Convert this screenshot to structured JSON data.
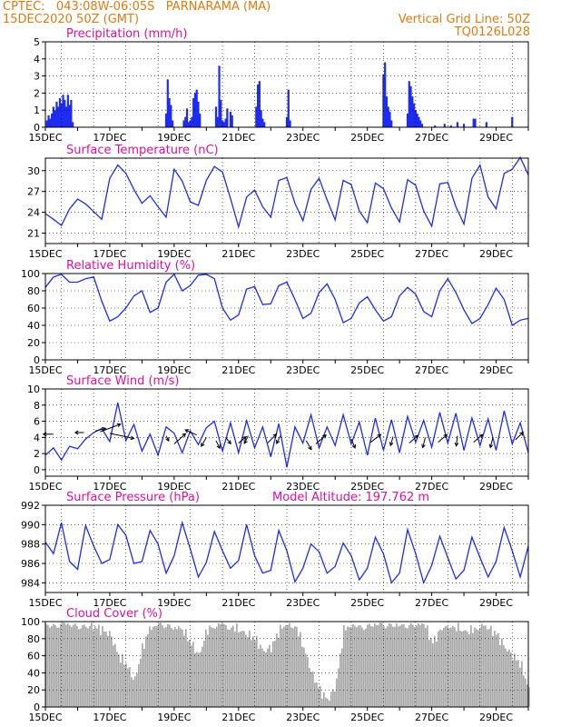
{
  "header": {
    "line1_left": "CPTEC:   043:08W-06:05S   PARNARAMA (MA)",
    "line2_left": "15DEC2020 50Z (GMT)",
    "line1_right": "Vertical Grid Line: 50Z",
    "line2_right": "TQ0126L028",
    "model_altitude": "Model Altitude: 197.762 m"
  },
  "colors": {
    "header": "#e07a10",
    "title": "#e0109a",
    "series": "#1e2cf0",
    "cloud": "#a9a9a9",
    "axis": "#000000"
  },
  "x_ticks": [
    "15DEC",
    "17DEC",
    "19DEC",
    "21DEC",
    "23DEC",
    "25DEC",
    "27DEC",
    "29DEC"
  ],
  "x_range_days": [
    0,
    15
  ],
  "chart_data": [
    {
      "id": "precip",
      "type": "bar",
      "title": "Precipitation (mm/h)",
      "ylim": [
        0,
        5
      ],
      "yticks": [
        0,
        1,
        2,
        3,
        4,
        5
      ],
      "x_unit": "days since 15DEC2020",
      "x": [
        0.05,
        0.1,
        0.15,
        0.2,
        0.25,
        0.3,
        0.35,
        0.4,
        0.45,
        0.5,
        0.55,
        0.6,
        0.65,
        0.7,
        0.75,
        0.8,
        0.85,
        3.75,
        3.8,
        3.85,
        3.9,
        3.95,
        4.3,
        4.35,
        4.4,
        4.45,
        4.5,
        4.55,
        4.6,
        4.65,
        4.7,
        4.75,
        4.8,
        5.3,
        5.35,
        5.4,
        5.45,
        5.5,
        5.55,
        5.6,
        5.65,
        5.75,
        5.8,
        6.55,
        6.6,
        6.65,
        6.7,
        6.75,
        6.8,
        7.5,
        7.55,
        7.6,
        10.5,
        10.55,
        10.6,
        10.65,
        10.7,
        10.75,
        11.25,
        11.3,
        11.35,
        11.4,
        11.45,
        11.5,
        11.55,
        11.6,
        11.65,
        11.7,
        12.1,
        12.4,
        12.6,
        12.8,
        13.0,
        13.3,
        13.35,
        13.7,
        14.5
      ],
      "values": [
        0.4,
        0.7,
        0.5,
        0.8,
        1.2,
        1.0,
        1.5,
        1.2,
        1.7,
        1.4,
        1.9,
        1.6,
        1.2,
        1.9,
        1.3,
        1.6,
        0.3,
        0.8,
        2.8,
        1.7,
        1.3,
        0.4,
        0.4,
        0.6,
        1.1,
        0.3,
        0.4,
        0.6,
        1.7,
        2.0,
        2.2,
        1.5,
        0.8,
        1.2,
        0.6,
        3.6,
        1.6,
        0.4,
        0.3,
        0.5,
        1.1,
        0.9,
        0.7,
        1.2,
        2.5,
        2.7,
        1.0,
        0.5,
        0.3,
        0.6,
        2.2,
        0.4,
        3.1,
        3.8,
        1.8,
        1.2,
        0.9,
        0.4,
        0.8,
        2.7,
        2.4,
        1.8,
        1.4,
        1.0,
        0.8,
        0.6,
        0.4,
        0.2,
        0.1,
        0.2,
        0.1,
        0.3,
        0.2,
        0.5,
        0.5,
        0.3,
        0.6
      ]
    },
    {
      "id": "temp",
      "type": "line",
      "title": "Surface Temperature (nC)",
      "ylim": [
        19.5,
        31.8
      ],
      "yticks": [
        21,
        24,
        27,
        30
      ],
      "x": [
        0,
        0.25,
        0.5,
        0.75,
        1,
        1.25,
        1.5,
        1.75,
        2,
        2.25,
        2.5,
        2.75,
        3,
        3.25,
        3.5,
        3.75,
        4,
        4.25,
        4.5,
        4.75,
        5,
        5.25,
        5.5,
        5.75,
        6,
        6.25,
        6.5,
        6.75,
        7,
        7.25,
        7.5,
        7.75,
        8,
        8.25,
        8.5,
        8.75,
        9,
        9.25,
        9.5,
        9.75,
        10,
        10.25,
        10.5,
        10.75,
        11,
        11.25,
        11.5,
        11.75,
        12,
        12.25,
        12.5,
        12.75,
        13,
        13.25,
        13.5,
        13.75,
        14,
        14.25,
        14.5,
        14.75,
        15
      ],
      "values": [
        23.8,
        23.0,
        22.1,
        24.5,
        25.9,
        25.2,
        24.1,
        23.0,
        28.9,
        30.8,
        29.6,
        27.3,
        25.3,
        26.4,
        24.8,
        23.3,
        30.2,
        28.5,
        25.5,
        25.0,
        28.6,
        30.6,
        29.8,
        26.0,
        21.9,
        26.2,
        27.2,
        24.8,
        23.3,
        28.6,
        29.0,
        25.3,
        22.8,
        27.3,
        28.9,
        25.8,
        22.9,
        28.6,
        28.0,
        24.2,
        22.5,
        28.2,
        27.4,
        24.6,
        22.6,
        28.7,
        27.9,
        24.2,
        22.0,
        28.1,
        28.3,
        24.8,
        22.3,
        28.9,
        30.8,
        26.2,
        24.5,
        29.6,
        30.2,
        31.9,
        29.4
      ]
    },
    {
      "id": "rh",
      "type": "line",
      "title": "Relative Humidity (%)",
      "ylim": [
        0,
        100
      ],
      "yticks": [
        0,
        20,
        40,
        60,
        80,
        100
      ],
      "x": [
        0,
        0.25,
        0.5,
        0.75,
        1,
        1.25,
        1.5,
        1.75,
        2,
        2.25,
        2.5,
        2.75,
        3,
        3.25,
        3.5,
        3.75,
        4,
        4.25,
        4.5,
        4.75,
        5,
        5.25,
        5.5,
        5.75,
        6,
        6.25,
        6.5,
        6.75,
        7,
        7.25,
        7.5,
        7.75,
        8,
        8.25,
        8.5,
        8.75,
        9,
        9.25,
        9.5,
        9.75,
        10,
        10.25,
        10.5,
        10.75,
        11,
        11.25,
        11.5,
        11.75,
        12,
        12.25,
        12.5,
        12.75,
        13,
        13.25,
        13.5,
        13.75,
        14,
        14.25,
        14.5,
        14.75,
        15
      ],
      "values": [
        84,
        96,
        99,
        90,
        90,
        94,
        96,
        68,
        45,
        50,
        60,
        74,
        80,
        55,
        60,
        90,
        99,
        80,
        86,
        98,
        99,
        94,
        60,
        46,
        52,
        82,
        85,
        64,
        65,
        86,
        90,
        70,
        48,
        54,
        78,
        88,
        70,
        43,
        48,
        66,
        73,
        58,
        45,
        50,
        74,
        84,
        76,
        56,
        50,
        80,
        94,
        78,
        58,
        42,
        48,
        64,
        83,
        70,
        40,
        46,
        48
      ]
    },
    {
      "id": "wind",
      "type": "line",
      "title": "Surface Wind (m/s)",
      "ylim": [
        -0.8,
        10
      ],
      "yticks": [
        0,
        2,
        4,
        6,
        8,
        10
      ],
      "x": [
        0,
        0.25,
        0.5,
        0.75,
        1,
        1.25,
        1.5,
        1.75,
        2,
        2.25,
        2.5,
        2.75,
        3,
        3.25,
        3.5,
        3.75,
        4,
        4.25,
        4.5,
        4.75,
        5,
        5.25,
        5.5,
        5.75,
        6,
        6.25,
        6.5,
        6.75,
        7,
        7.25,
        7.5,
        7.75,
        8,
        8.25,
        8.5,
        8.75,
        9,
        9.25,
        9.5,
        9.75,
        10,
        10.25,
        10.5,
        10.75,
        11,
        11.25,
        11.5,
        11.75,
        12,
        12.25,
        12.5,
        12.75,
        13,
        13.25,
        13.5,
        13.75,
        14,
        14.25,
        14.5,
        14.75,
        15
      ],
      "values": [
        1.8,
        2.7,
        1.2,
        2.9,
        2.6,
        3.8,
        4.6,
        5.1,
        3.5,
        8.3,
        3.6,
        5.6,
        2.3,
        4.4,
        1.8,
        5.3,
        4.5,
        2.1,
        4.8,
        3.1,
        5.2,
        6.0,
        2.3,
        5.8,
        2.1,
        6.1,
        2.7,
        5.3,
        1.6,
        5.7,
        0.3,
        5.3,
        3.3,
        6.8,
        2.7,
        5.3,
        3.0,
        6.8,
        3.2,
        5.9,
        1.8,
        6.4,
        2.4,
        6.2,
        2.1,
        6.6,
        3.4,
        6.1,
        2.8,
        7.1,
        3.3,
        7.0,
        2.4,
        6.4,
        3.0,
        6.3,
        2.4,
        7.3,
        3.2,
        5.8,
        2.1
      ],
      "vectors": [
        {
          "x": 0.25,
          "y": 4.4,
          "u": -0.8,
          "v": 0.0
        },
        {
          "x": 1.2,
          "y": 4.6,
          "u": -0.7,
          "v": 0.0
        },
        {
          "x": 1.55,
          "y": 4.8,
          "u": 0.8,
          "v": 0.2
        },
        {
          "x": 1.7,
          "y": 4.7,
          "u": 1.6,
          "v": 0.6
        },
        {
          "x": 2.0,
          "y": 4.5,
          "u": 1.9,
          "v": -0.4
        },
        {
          "x": 3.75,
          "y": 4.2,
          "u": 0.2,
          "v": -0.4
        },
        {
          "x": 4.0,
          "y": 3.2,
          "u": 0.9,
          "v": 0.8
        },
        {
          "x": 4.7,
          "y": 4.3,
          "u": -0.9,
          "v": 0.4
        },
        {
          "x": 5.0,
          "y": 4.0,
          "u": -0.4,
          "v": -0.7
        },
        {
          "x": 5.3,
          "y": 3.6,
          "u": 0.3,
          "v": -0.6
        },
        {
          "x": 5.6,
          "y": 4.0,
          "u": 0.4,
          "v": -0.5
        },
        {
          "x": 6.0,
          "y": 3.3,
          "u": 0.6,
          "v": 0.5
        },
        {
          "x": 6.3,
          "y": 4.2,
          "u": -0.3,
          "v": -0.6
        },
        {
          "x": 6.9,
          "y": 3.3,
          "u": 0.7,
          "v": 0.7
        },
        {
          "x": 7.3,
          "y": 4.2,
          "u": -0.3,
          "v": -0.6
        },
        {
          "x": 8.1,
          "y": 3.6,
          "u": 0.4,
          "v": -0.7
        },
        {
          "x": 8.4,
          "y": 3.2,
          "u": 0.8,
          "v": 0.7
        },
        {
          "x": 9.5,
          "y": 3.8,
          "u": 0.3,
          "v": -0.7
        },
        {
          "x": 10.1,
          "y": 3.4,
          "u": 0.8,
          "v": 0.6
        },
        {
          "x": 10.8,
          "y": 4.1,
          "u": -0.2,
          "v": -0.7
        },
        {
          "x": 11.3,
          "y": 3.3,
          "u": 0.7,
          "v": 0.6
        },
        {
          "x": 11.8,
          "y": 4.0,
          "u": -0.2,
          "v": -0.8
        },
        {
          "x": 12.2,
          "y": 3.4,
          "u": 0.7,
          "v": 0.6
        },
        {
          "x": 12.8,
          "y": 4.2,
          "u": -0.1,
          "v": -0.8
        },
        {
          "x": 13.3,
          "y": 3.4,
          "u": 0.7,
          "v": 0.6
        },
        {
          "x": 13.9,
          "y": 4.0,
          "u": -0.2,
          "v": -0.8
        },
        {
          "x": 14.6,
          "y": 3.7,
          "u": 0.6,
          "v": 0.6
        }
      ]
    },
    {
      "id": "press",
      "type": "line",
      "title": "Surface Pressure (hPa)",
      "ylim": [
        983,
        992
      ],
      "yticks": [
        984,
        986,
        988,
        990,
        992
      ],
      "x": [
        0,
        0.25,
        0.5,
        0.75,
        1,
        1.25,
        1.5,
        1.75,
        2,
        2.25,
        2.5,
        2.75,
        3,
        3.25,
        3.5,
        3.75,
        4,
        4.25,
        4.5,
        4.75,
        5,
        5.25,
        5.5,
        5.75,
        6,
        6.25,
        6.5,
        6.75,
        7,
        7.25,
        7.5,
        7.75,
        8,
        8.25,
        8.5,
        8.75,
        9,
        9.25,
        9.5,
        9.75,
        10,
        10.25,
        10.5,
        10.75,
        11,
        11.25,
        11.5,
        11.75,
        12,
        12.25,
        12.5,
        12.75,
        13,
        13.25,
        13.5,
        13.75,
        14,
        14.25,
        14.5,
        14.75,
        15
      ],
      "values": [
        988.2,
        987.0,
        990.2,
        986.2,
        985.4,
        989.9,
        987.8,
        986.0,
        986.4,
        990.0,
        988.9,
        986.0,
        986.2,
        989.4,
        988.0,
        985.0,
        986.8,
        990.2,
        987.5,
        984.6,
        986.1,
        989.3,
        987.3,
        985.5,
        986.3,
        990.0,
        986.8,
        985.0,
        985.3,
        989.4,
        987.3,
        984.1,
        985.5,
        988.0,
        987.2,
        985.0,
        985.7,
        988.1,
        986.8,
        984.3,
        985.5,
        988.7,
        987.0,
        984.0,
        985.0,
        989.5,
        987.0,
        984.0,
        985.8,
        988.8,
        986.6,
        984.4,
        985.3,
        988.7,
        986.6,
        984.6,
        986.2,
        989.7,
        987.3,
        984.6,
        987.8
      ]
    },
    {
      "id": "cloud",
      "type": "area",
      "title": "Cloud Cover (%)",
      "ylim": [
        0,
        100
      ],
      "yticks": [
        0,
        20,
        40,
        60,
        80,
        100
      ],
      "x": [
        0,
        0.25,
        0.5,
        0.75,
        1,
        1.25,
        1.5,
        1.75,
        2,
        2.25,
        2.5,
        2.75,
        3,
        3.25,
        3.5,
        3.75,
        4,
        4.25,
        4.5,
        4.75,
        5,
        5.25,
        5.5,
        5.75,
        6,
        6.25,
        6.5,
        6.75,
        7,
        7.25,
        7.5,
        7.75,
        8,
        8.25,
        8.5,
        8.75,
        9,
        9.25,
        9.5,
        9.75,
        10,
        10.25,
        10.5,
        10.75,
        11,
        11.25,
        11.5,
        11.75,
        12,
        12.25,
        12.5,
        12.75,
        13,
        13.25,
        13.5,
        13.75,
        14,
        14.25,
        14.5,
        14.75,
        15
      ],
      "values": [
        99,
        98,
        100,
        99,
        98,
        96,
        94,
        90,
        85,
        60,
        50,
        30,
        70,
        95,
        99,
        99,
        95,
        90,
        75,
        60,
        90,
        98,
        99,
        95,
        90,
        85,
        80,
        65,
        70,
        90,
        99,
        96,
        70,
        40,
        20,
        8,
        25,
        90,
        99,
        96,
        98,
        99,
        99,
        99,
        97,
        99,
        99,
        98,
        75,
        90,
        99,
        94,
        88,
        90,
        99,
        92,
        85,
        70,
        60,
        50,
        20
      ]
    }
  ]
}
